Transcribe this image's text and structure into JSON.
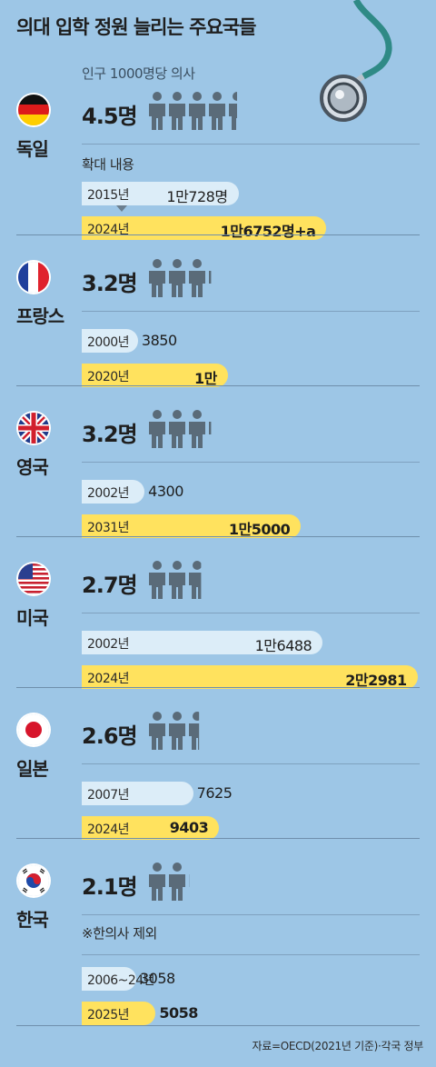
{
  "title": "의대 입학 정원 늘리는 주요국들",
  "per_capita_label": "인구 1000명당 의사",
  "expansion_label": "확대 내용",
  "source": "자료=OECD(2021년 기준)·각국 정부",
  "colors": {
    "background": "#9dc6e6",
    "before_bar": "#dcedf8",
    "after_bar": "#ffe25e",
    "person_icon": "#5a6b79"
  },
  "chart_data": {
    "type": "bar",
    "title": "의대 입학 정원 늘리는 주요국들",
    "ratio_label": "인구 1000명당 의사",
    "countries": [
      {
        "name": "독일",
        "flag": "germany-flag-icon",
        "ratio": 4.5,
        "ratio_text": "4.5명",
        "before": {
          "year": "2015년",
          "value": 10728,
          "value_text": "1만728명"
        },
        "after": {
          "year": "2024년",
          "value": 16752,
          "value_text": "1만6752명+a"
        }
      },
      {
        "name": "프랑스",
        "flag": "france-flag-icon",
        "ratio": 3.2,
        "ratio_text": "3.2명",
        "before": {
          "year": "2000년",
          "value": 3850,
          "value_text": "3850"
        },
        "after": {
          "year": "2020년",
          "value": 10000,
          "value_text": "1만"
        }
      },
      {
        "name": "영국",
        "flag": "uk-flag-icon",
        "ratio": 3.2,
        "ratio_text": "3.2명",
        "before": {
          "year": "2002년",
          "value": 4300,
          "value_text": "4300"
        },
        "after": {
          "year": "2031년",
          "value": 15000,
          "value_text": "1만5000"
        }
      },
      {
        "name": "미국",
        "flag": "us-flag-icon",
        "ratio": 2.7,
        "ratio_text": "2.7명",
        "before": {
          "year": "2002년",
          "value": 16488,
          "value_text": "1만6488"
        },
        "after": {
          "year": "2024년",
          "value": 22981,
          "value_text": "2만2981"
        }
      },
      {
        "name": "일본",
        "flag": "japan-flag-icon",
        "ratio": 2.6,
        "ratio_text": "2.6명",
        "before": {
          "year": "2007년",
          "value": 7625,
          "value_text": "7625"
        },
        "after": {
          "year": "2024년",
          "value": 9403,
          "value_text": "9403"
        }
      },
      {
        "name": "한국",
        "flag": "korea-flag-icon",
        "ratio": 2.1,
        "ratio_text": "2.1명",
        "note": "※한의사 제외",
        "before": {
          "year": "2006~24년",
          "value": 3058,
          "value_text": "3058"
        },
        "after": {
          "year": "2025년",
          "value": 5058,
          "value_text": "5058"
        }
      }
    ]
  }
}
